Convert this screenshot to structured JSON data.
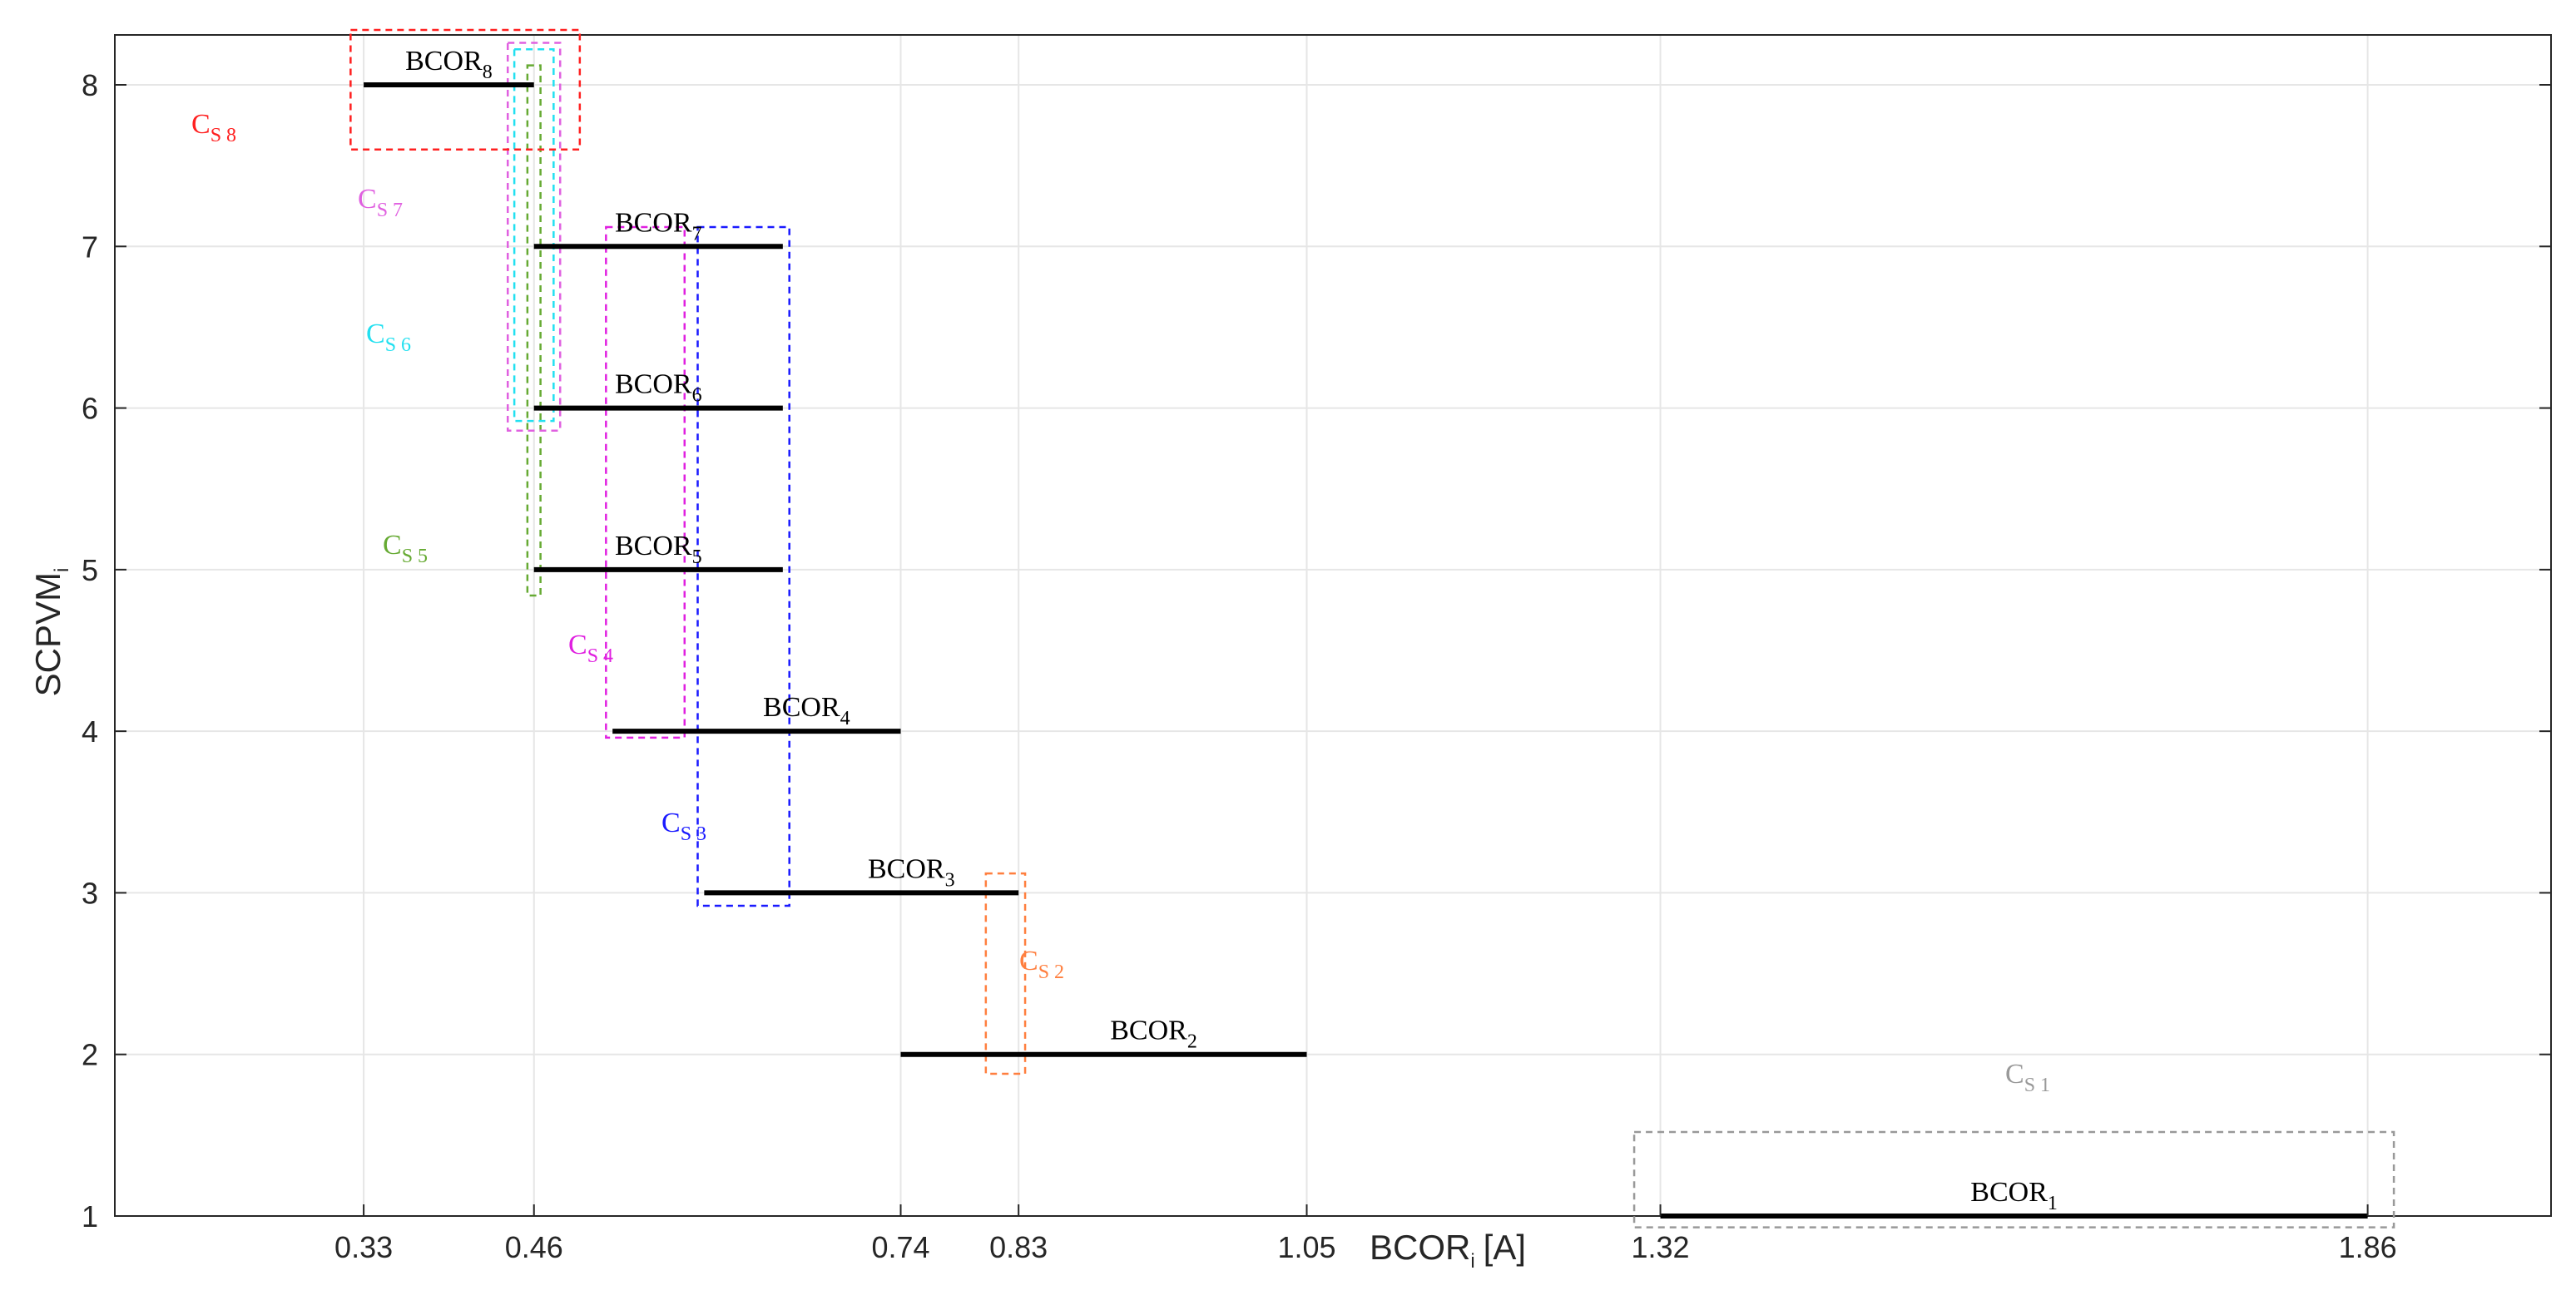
{
  "chart_data": {
    "type": "range-segments",
    "xlabel_main": "BCOR",
    "xlabel_sub": "i",
    "xlabel_unit": "[A]",
    "ylabel_main": "SCPVM",
    "ylabel_sub": "i",
    "xlim": [
      0.14,
      2.0
    ],
    "ylim": [
      1,
      8
    ],
    "x_ticks": [
      0.33,
      0.46,
      0.74,
      0.83,
      1.05,
      1.32,
      1.86
    ],
    "x_tick_labels": [
      "0.33",
      "0.46",
      "0.74",
      "0.83",
      "1.05",
      "1.32",
      "1.86"
    ],
    "y_ticks": [
      1,
      2,
      3,
      4,
      5,
      6,
      7,
      8
    ],
    "y_tick_labels": [
      "1",
      "2",
      "3",
      "4",
      "5",
      "6",
      "7",
      "8"
    ],
    "grid": true,
    "segments": [
      {
        "label_main": "BCOR",
        "label_sub": "1",
        "y": 1,
        "x0": 1.32,
        "x1": 1.86
      },
      {
        "label_main": "BCOR",
        "label_sub": "2",
        "y": 2,
        "x0": 0.74,
        "x1": 1.05
      },
      {
        "label_main": "BCOR",
        "label_sub": "3",
        "y": 3,
        "x0": 0.59,
        "x1": 0.83
      },
      {
        "label_main": "BCOR",
        "label_sub": "4",
        "y": 4,
        "x0": 0.52,
        "x1": 0.74
      },
      {
        "label_main": "BCOR",
        "label_sub": "5",
        "y": 5,
        "x0": 0.46,
        "x1": 0.65
      },
      {
        "label_main": "BCOR",
        "label_sub": "6",
        "y": 6,
        "x0": 0.46,
        "x1": 0.65
      },
      {
        "label_main": "BCOR",
        "label_sub": "7",
        "y": 7,
        "x0": 0.46,
        "x1": 0.65
      },
      {
        "label_main": "BCOR",
        "label_sub": "8",
        "y": 8,
        "x0": 0.33,
        "x1": 0.46
      }
    ],
    "clusters": [
      {
        "label_main": "C",
        "label_sub": "S 1",
        "color": "#999999",
        "x0": 1.3,
        "x1": 1.88,
        "y0": 0.93,
        "y1": 1.52
      },
      {
        "label_main": "C",
        "label_sub": "S 2",
        "color": "#ff7f3f",
        "x0": 0.805,
        "x1": 0.835,
        "y0": 1.88,
        "y1": 3.12
      },
      {
        "label_main": "C",
        "label_sub": "S 3",
        "color": "#1a1aff",
        "x0": 0.585,
        "x1": 0.655,
        "y0": 2.92,
        "y1": 7.12
      },
      {
        "label_main": "C",
        "label_sub": "S 4",
        "color": "#e020e0",
        "x0": 0.515,
        "x1": 0.575,
        "y0": 3.96,
        "y1": 7.12
      },
      {
        "label_main": "C",
        "label_sub": "S 5",
        "color": "#66aa33",
        "x0": 0.455,
        "x1": 0.465,
        "y0": 4.84,
        "y1": 8.12
      },
      {
        "label_main": "C",
        "label_sub": "S 6",
        "color": "#22e0f0",
        "x0": 0.445,
        "x1": 0.475,
        "y0": 5.92,
        "y1": 8.22
      },
      {
        "label_main": "C",
        "label_sub": "S 7",
        "color": "#e060e0",
        "x0": 0.44,
        "x1": 0.48,
        "y0": 5.86,
        "y1": 8.26
      },
      {
        "label_main": "C",
        "label_sub": "S 8",
        "color": "#ff2020",
        "x0": 0.32,
        "x1": 0.495,
        "y0": 7.6,
        "y1": 8.34
      }
    ]
  }
}
